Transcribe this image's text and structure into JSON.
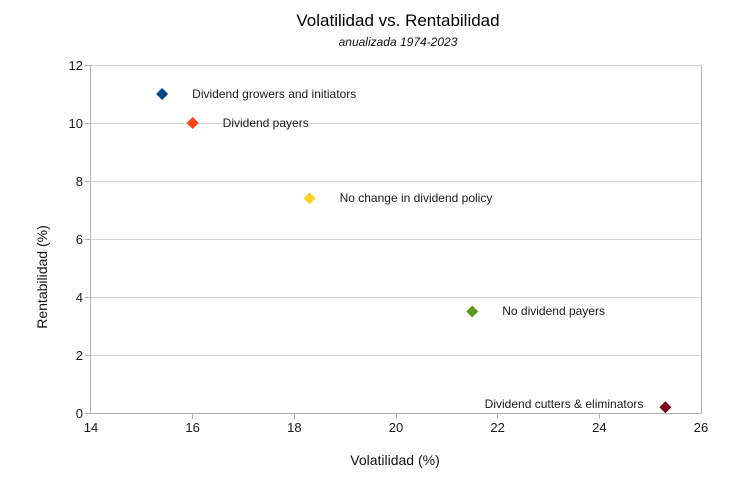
{
  "chart_data": {
    "type": "scatter",
    "title": "Volatilidad vs. Rentabilidad",
    "subtitle": "anualizada 1974-2023",
    "xlabel": "Volatilidad (%)",
    "ylabel": "Rentabilidad (%)",
    "xlim": [
      14,
      26
    ],
    "ylim": [
      0,
      12
    ],
    "x_ticks": [
      14,
      16,
      18,
      20,
      22,
      24,
      26
    ],
    "y_ticks": [
      0,
      2,
      4,
      6,
      8,
      10,
      12
    ],
    "grid": "horizontal-only",
    "legend": "none",
    "marker": "diamond",
    "series": [
      {
        "name": "Dividend growers and initiators",
        "x": 15.4,
        "y": 11.0,
        "color": "#004586",
        "label_side": "right"
      },
      {
        "name": "Dividend payers",
        "x": 16.0,
        "y": 10.0,
        "color": "#FF420E",
        "label_side": "right"
      },
      {
        "name": "No change in dividend policy",
        "x": 18.3,
        "y": 7.4,
        "color": "#FFD320",
        "label_side": "right"
      },
      {
        "name": "No dividend payers",
        "x": 21.5,
        "y": 3.5,
        "color": "#579D1C",
        "label_side": "right"
      },
      {
        "name": "Dividend cutters & eliminators",
        "x": 25.3,
        "y": 0.2,
        "color": "#7E0021",
        "label_side": "left"
      }
    ],
    "colors": {
      "background": "#ffffff",
      "gridline": "#d6d6d6",
      "axis": "#b3b3b3",
      "text": "#1a1a1a"
    }
  }
}
